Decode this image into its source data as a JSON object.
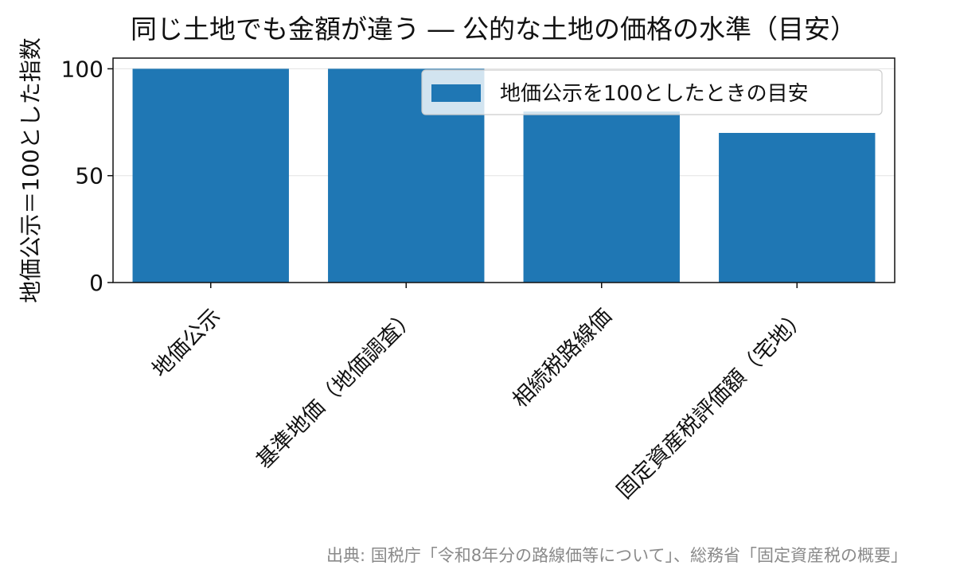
{
  "chart_data": {
    "type": "bar",
    "title": "同じ土地でも金額が違う ― 公的な土地の価格の水準（目安）",
    "ylabel": "地価公示＝100とした指数",
    "xlabel": "",
    "categories": [
      "地価公示",
      "基準地価（地価調査）",
      "相続税路線価",
      "固定資産税評価額（宅地）"
    ],
    "series": [
      {
        "name": "地価公示を100としたときの目安",
        "values": [
          100,
          100,
          80,
          70
        ]
      }
    ],
    "ylim": [
      0,
      105
    ],
    "yticks": [
      0,
      50,
      100
    ],
    "grid": "y",
    "legend": "top-right",
    "bar_color": "#1f77b4",
    "source": "出典: 国税庁「令和8年分の路線価等について」、総務省「固定資産税の概要」"
  }
}
